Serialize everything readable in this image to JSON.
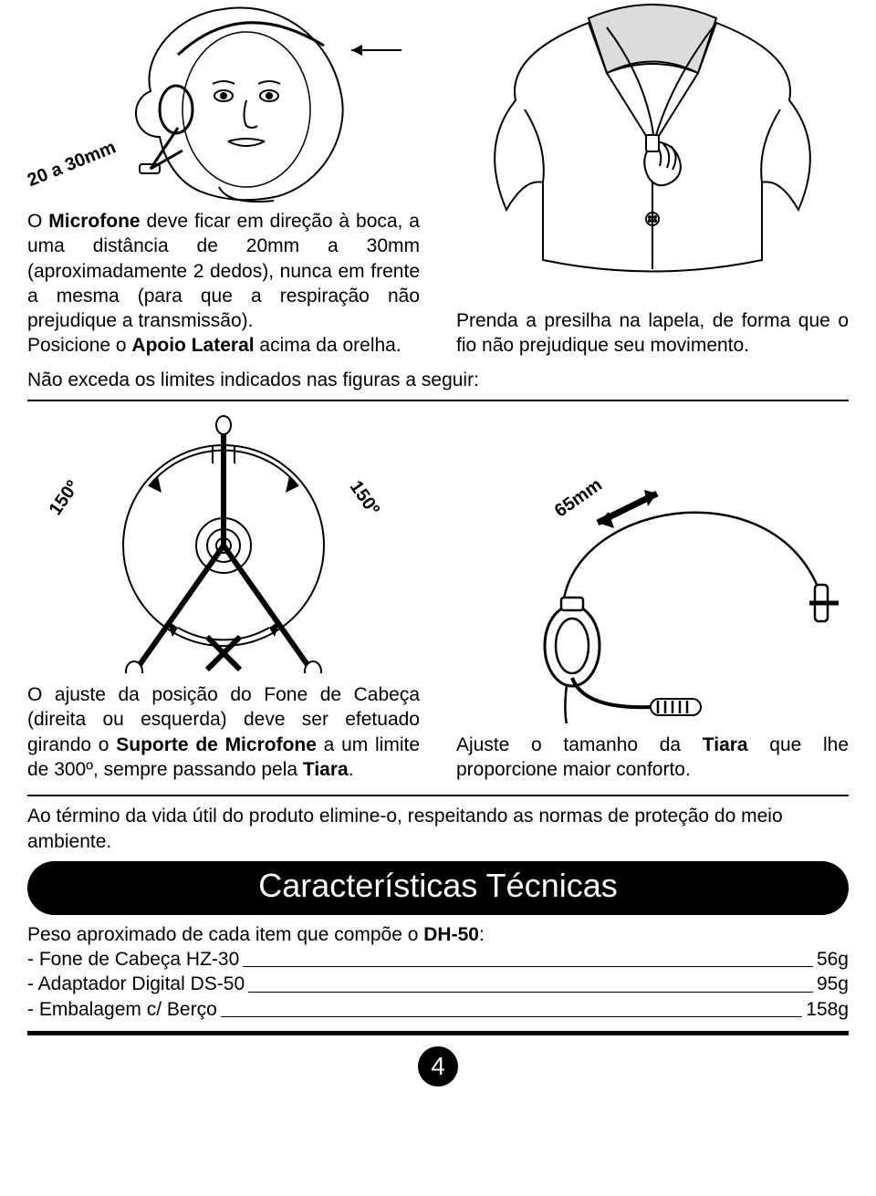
{
  "section1": {
    "left": {
      "illustration_label": "20 a 30mm",
      "para_html": "O <b>Microfone</b> deve ficar em direção à boca, a uma distância de 20mm a 30mm (aproximadamente 2 dedos), nunca em frente a mesma (para que a respiração não prejudique a transmissão).<br>Posicione o <b>Apoio Lateral</b> acima da orelha."
    },
    "right": {
      "para": "Prenda a presilha na lapela, de forma que o fio não prejudique seu movimento."
    },
    "below_line": "Não exceda os limites indicados nas figuras a seguir:"
  },
  "section2": {
    "left": {
      "angle_left": "150º",
      "angle_right": "150º",
      "para_html": "O ajuste da posição do Fone de Cabeça (direita ou esquerda) deve ser efetuado girando o <b>Suporte de Microfone</b> a um limite de 300º, sempre passando pela <b>Tiara</b>."
    },
    "right": {
      "length_label": "65mm",
      "para_html": "Ajuste o tamanho da <b>Tiara</b> que lhe proporcione maior conforto."
    }
  },
  "disposal_note": "Ao término da vida útil do produto elimine-o, respeitando as normas de proteção do meio ambiente.",
  "specs": {
    "header": "Características Técnicas",
    "intro_html": "Peso aproximado de cada item que compõe o <b>DH-50</b>:",
    "rows": [
      {
        "label": "- Fone de Cabeça  HZ-30",
        "value": "56g"
      },
      {
        "label": "- Adaptador Digital DS-50",
        "value": "95g"
      },
      {
        "label": "- Embalagem c/ Berço",
        "value": "158g"
      }
    ]
  },
  "page_number": "4",
  "colors": {
    "fg": "#000000",
    "bg": "#ffffff",
    "gray": "#dcdcdc"
  }
}
